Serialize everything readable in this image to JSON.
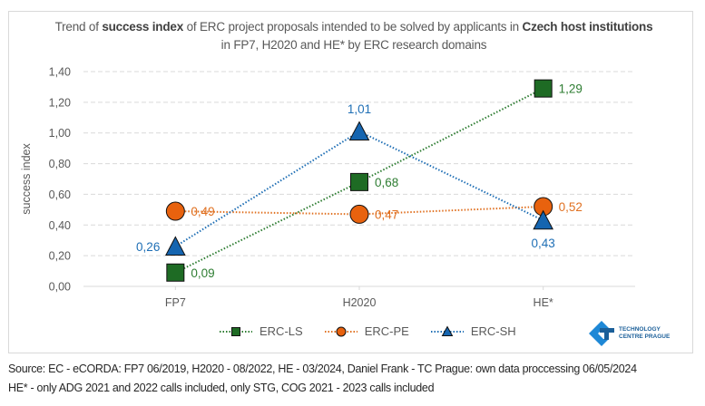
{
  "chart_data": {
    "type": "line",
    "title_parts": [
      {
        "text": "Trend of ",
        "bold": false
      },
      {
        "text": "success index",
        "bold": true
      },
      {
        "text": " of ERC project proposals intended to be solved by applicants in ",
        "bold": false
      },
      {
        "text": "Czech host institutions",
        "bold": true
      },
      {
        "text": " in FP7, H2020 and HE* by ERC research domains",
        "bold": false
      }
    ],
    "xlabel": "",
    "ylabel": "success index",
    "categories": [
      "FP7",
      "H2020",
      "HE*"
    ],
    "ylim": [
      0,
      1.4
    ],
    "yticks": [
      "0,00",
      "0,20",
      "0,40",
      "0,60",
      "0,80",
      "1,00",
      "1,20",
      "1,40"
    ],
    "ytick_values": [
      0,
      0.2,
      0.4,
      0.6,
      0.8,
      1.0,
      1.2,
      1.4
    ],
    "grid": true,
    "legend_position": "bottom",
    "series": [
      {
        "name": "ERC-LS",
        "values": [
          0.09,
          0.68,
          1.29
        ],
        "labels": [
          "0,09",
          "0,68",
          "1,29"
        ],
        "color": "#2e7d32",
        "marker_fill": "#1e6b24",
        "marker": "square",
        "label_pos": [
          "right",
          "right",
          "right"
        ]
      },
      {
        "name": "ERC-PE",
        "values": [
          0.49,
          0.47,
          0.52
        ],
        "labels": [
          "0,49",
          "0,47",
          "0,52"
        ],
        "color": "#e07020",
        "marker_fill": "#e8620e",
        "marker": "circle",
        "label_pos": [
          "right",
          "right",
          "right"
        ]
      },
      {
        "name": "ERC-SH",
        "values": [
          0.26,
          1.01,
          0.43
        ],
        "labels": [
          "0,26",
          "1,01",
          "0,43"
        ],
        "color": "#1f6fb5",
        "marker_fill": "#1565b0",
        "marker": "triangle",
        "label_pos": [
          "left",
          "above",
          "below"
        ]
      }
    ]
  },
  "logo": {
    "line1": "TECHNOLOGY",
    "line2": "CENTRE PRAGUE"
  },
  "footer": {
    "source": "Source: EC - eCORDA: FP7 06/2019, H2020 - 08/2022, HE - 03/2024, Daniel Frank - TC Prague: own data proccessing 06/05/2024",
    "note": "HE* - only ADG 2021 and 2022 calls included, only STG, COG 2021 - 2023 calls included"
  }
}
